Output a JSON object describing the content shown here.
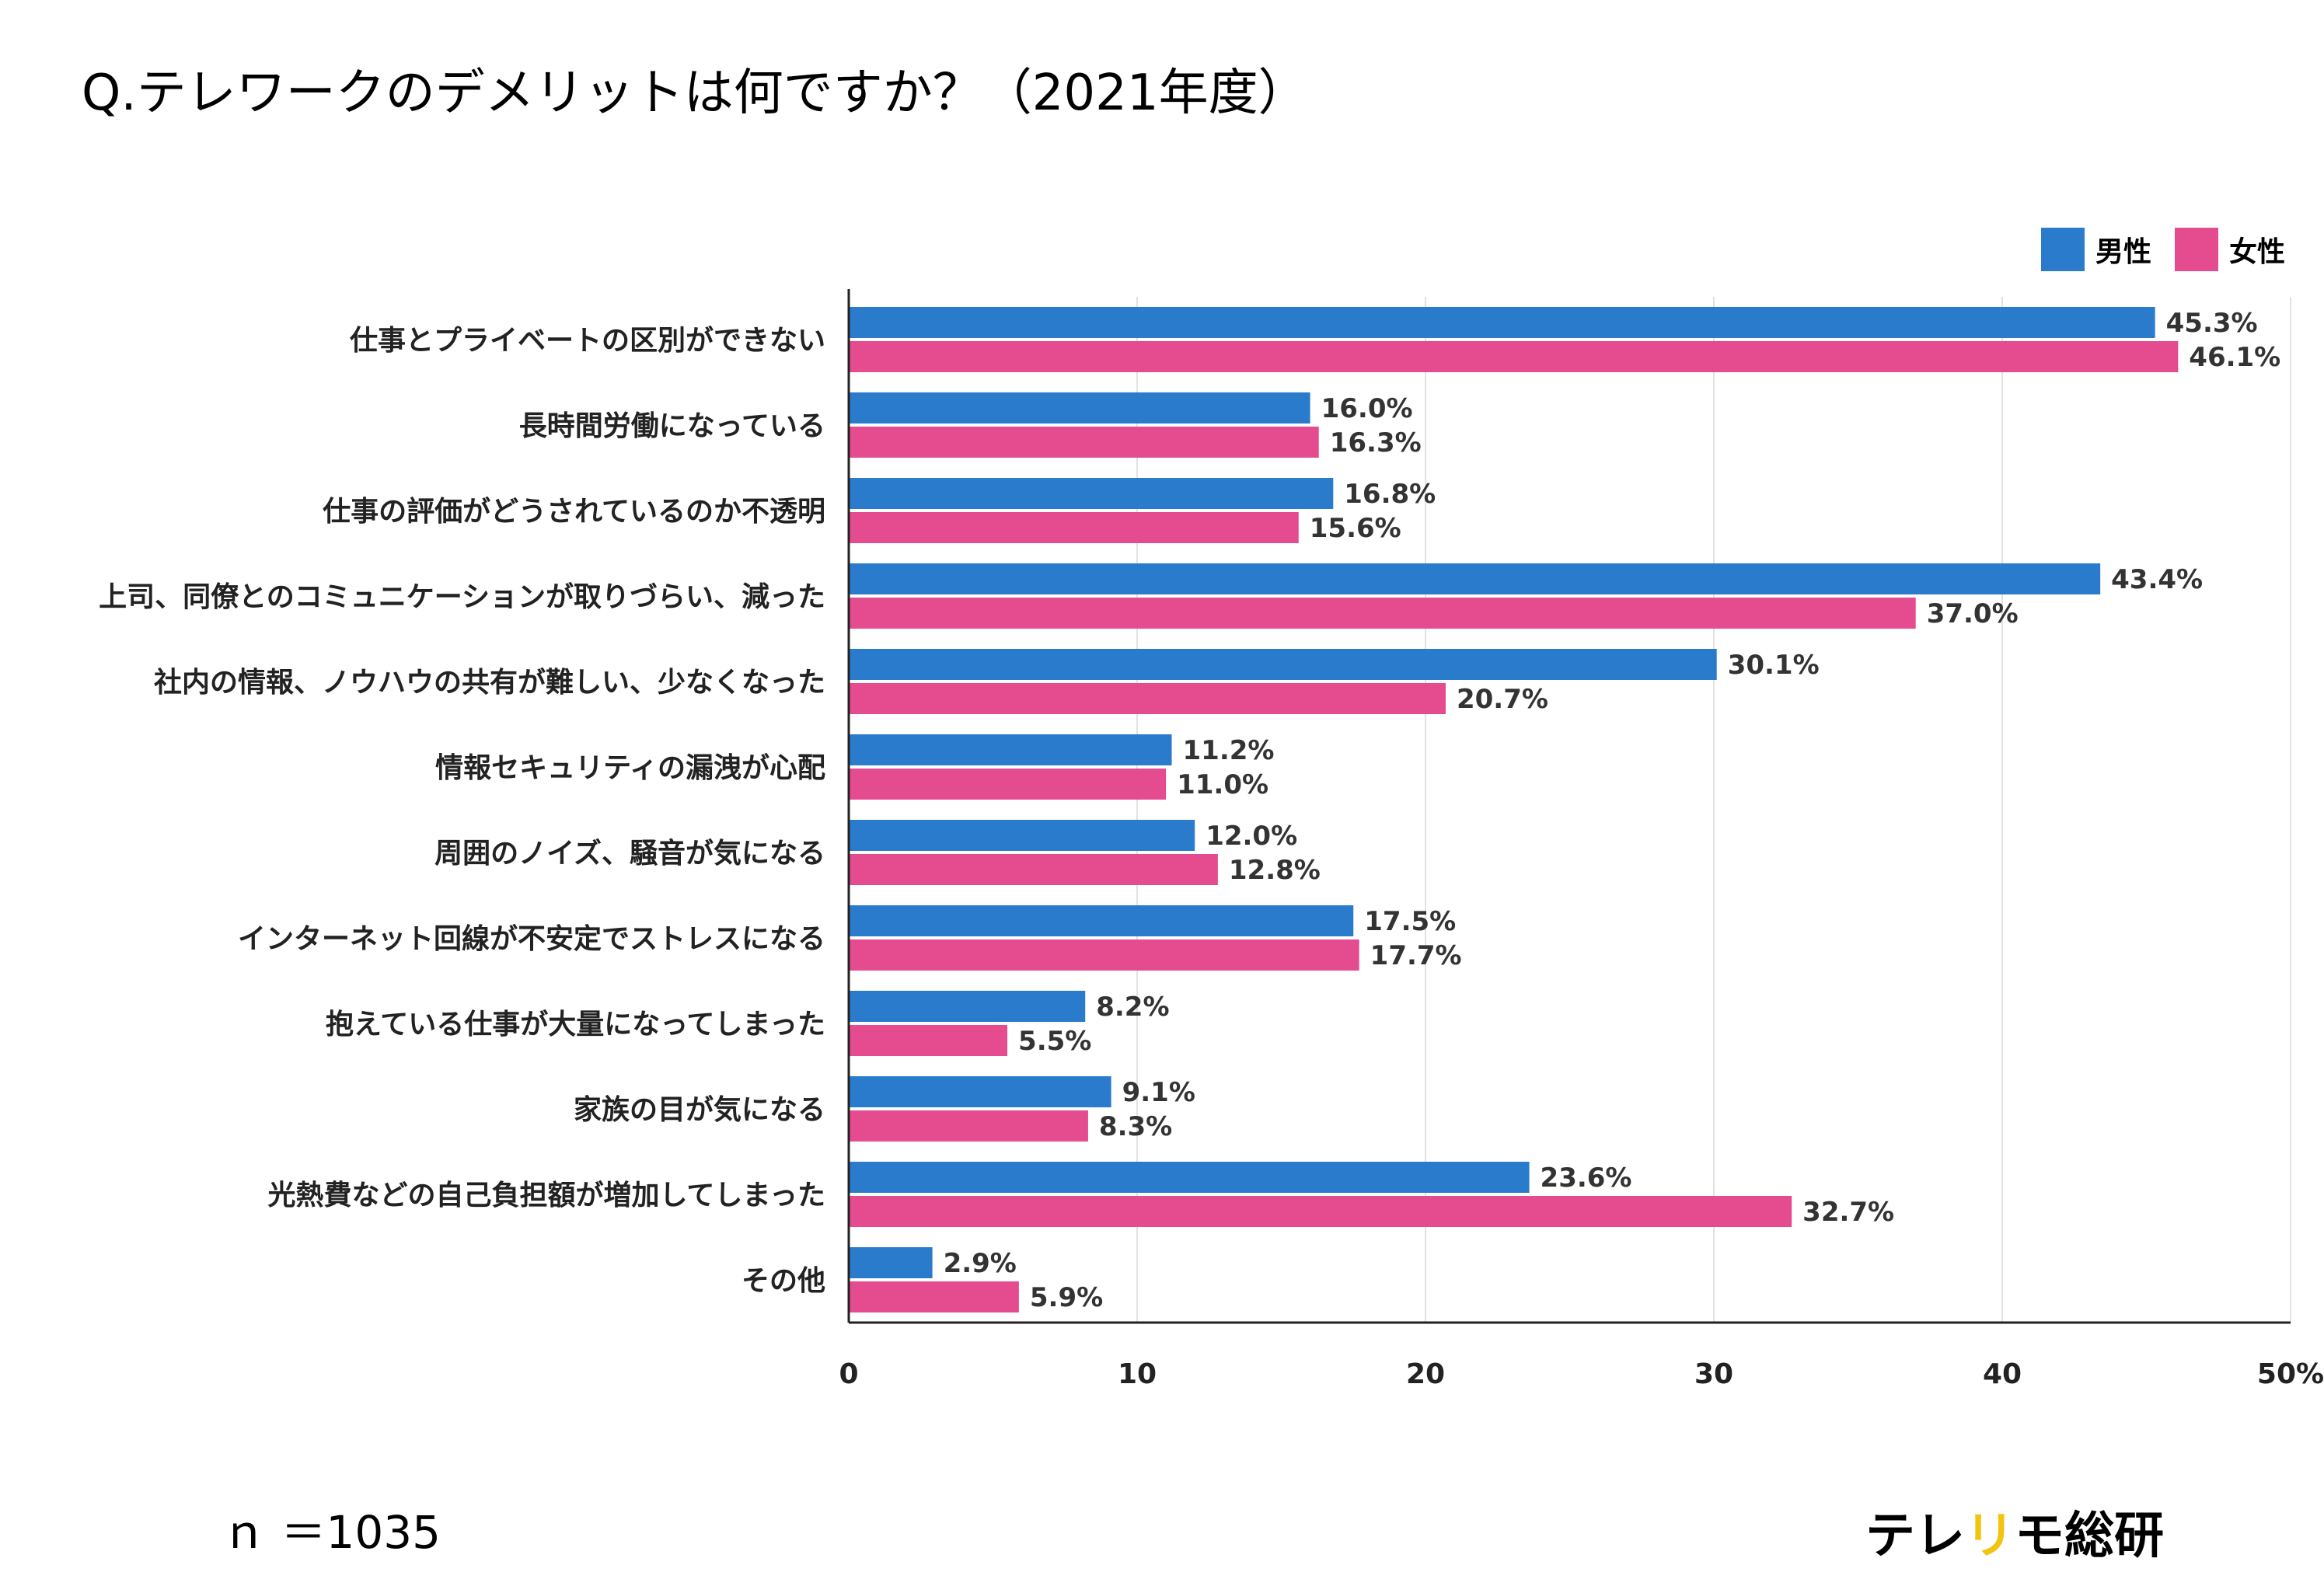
{
  "title": "Q.テレワークのデメリットは何ですか？（2021年度）",
  "sample_size": "ｎ ＝1035",
  "brand": {
    "part1": "テレ",
    "part2": "リ",
    "part3": "モ",
    "part4": "総研"
  },
  "colors": {
    "male": "#2a7bcc",
    "female": "#e54b8f",
    "grid": "#e2e2e2",
    "brand_accent": "#f2c311"
  },
  "chart_data": {
    "type": "bar",
    "orientation": "horizontal",
    "title": "Q.テレワークのデメリットは何ですか？（2021年度）",
    "xlabel": "",
    "ylabel": "",
    "xlim": [
      0,
      50
    ],
    "x_ticks": [
      "0",
      "10",
      "20",
      "30",
      "40",
      "50%"
    ],
    "legend_position": "top-right",
    "categories": [
      "仕事とプライベートの区別ができない",
      "長時間労働になっている",
      "仕事の評価がどうされているのか不透明",
      "上司、同僚とのコミュニケーションが取りづらい、減った",
      "社内の情報、ノウハウの共有が難しい、少なくなった",
      "情報セキュリティの漏洩が心配",
      "周囲のノイズ、騒音が気になる",
      "インターネット回線が不安定でストレスになる",
      "抱えている仕事が大量になってしまった",
      "家族の目が気になる",
      "光熱費などの自己負担額が増加してしまった",
      "その他"
    ],
    "series": [
      {
        "name": "男性",
        "values": [
          45.3,
          16.0,
          16.8,
          43.4,
          30.1,
          11.2,
          12.0,
          17.5,
          8.2,
          9.1,
          23.6,
          2.9
        ],
        "labels": [
          "45.3%",
          "16.0%",
          "16.8%",
          "43.4%",
          "30.1%",
          "11.2%",
          "12.0%",
          "17.5%",
          "8.2%",
          "9.1%",
          "23.6%",
          "2.9%"
        ]
      },
      {
        "name": "女性",
        "values": [
          46.1,
          16.3,
          15.6,
          37.0,
          20.7,
          11.0,
          12.8,
          17.7,
          5.5,
          8.3,
          32.7,
          5.9
        ],
        "labels": [
          "46.1%",
          "16.3%",
          "15.6%",
          "37.0%",
          "20.7%",
          "11.0%",
          "12.8%",
          "17.7%",
          "5.5%",
          "8.3%",
          "32.7%",
          "5.9%"
        ]
      }
    ]
  }
}
